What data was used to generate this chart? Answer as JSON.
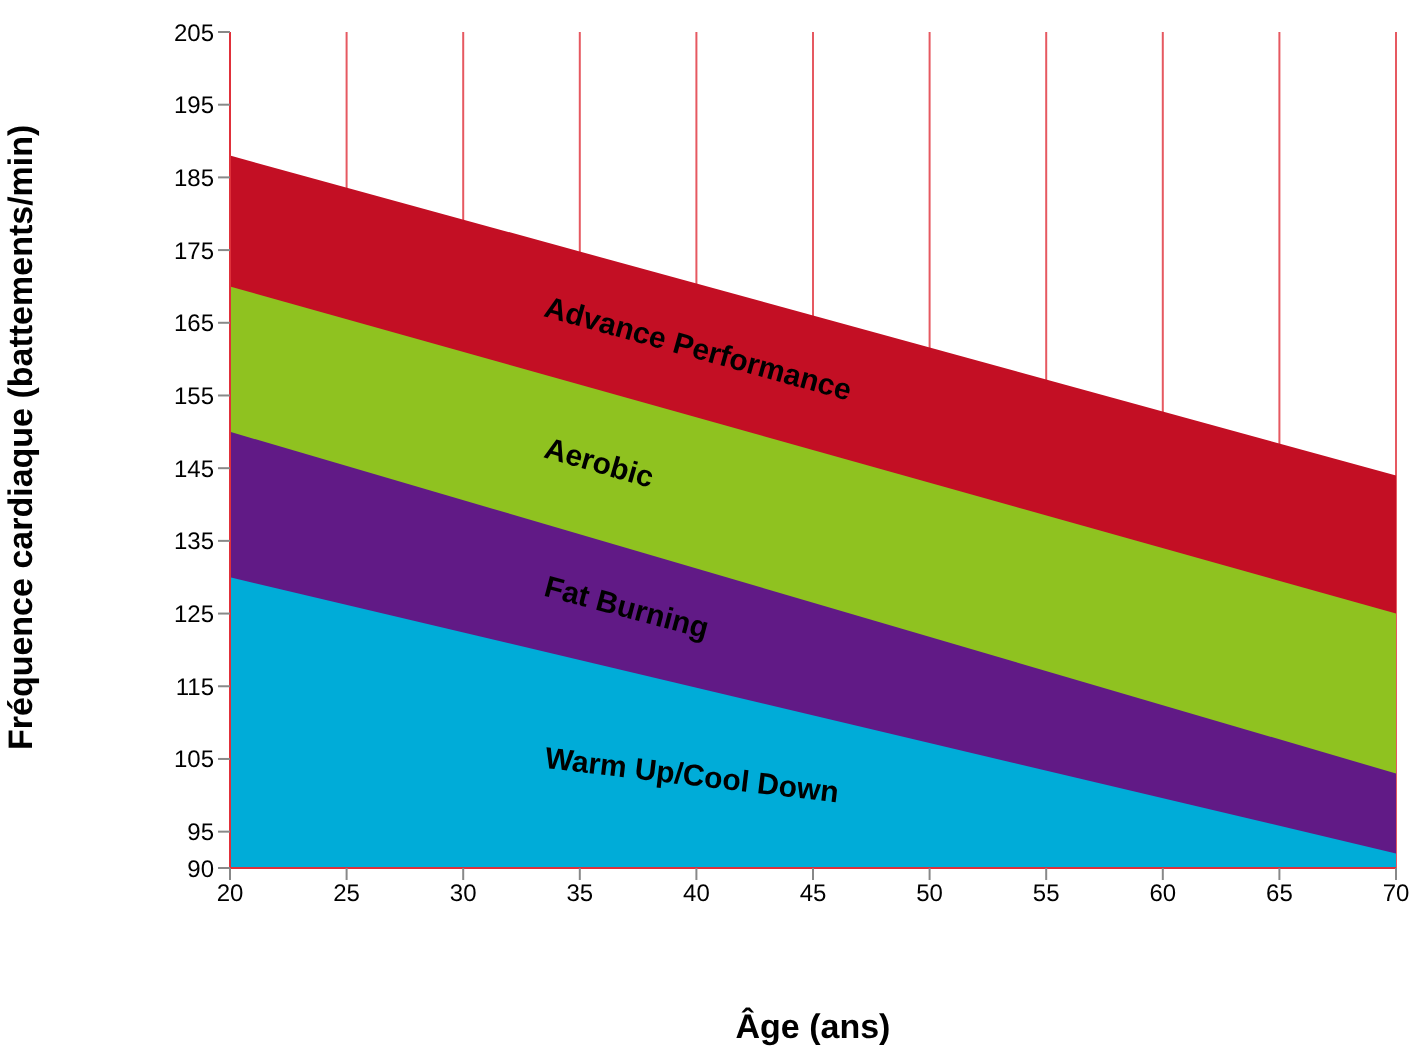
{
  "chart_data": {
    "type": "area",
    "xlabel": "Âge (ans)",
    "ylabel": "Fréquence cardiaque (battements/min)",
    "x": [
      20,
      70
    ],
    "series": [
      {
        "name": "Advance Performance",
        "color": "#c30f24",
        "values": [
          188,
          144
        ]
      },
      {
        "name": "Aerobic",
        "color": "#8fc220",
        "values": [
          170,
          125
        ]
      },
      {
        "name": "Fat Burning",
        "color": "#611a86",
        "values": [
          150,
          103
        ]
      },
      {
        "name": "Warm Up/Cool Down",
        "color": "#00acd8",
        "values": [
          130,
          92
        ]
      }
    ],
    "xlim": [
      20,
      70
    ],
    "xticks": [
      20,
      25,
      30,
      35,
      40,
      45,
      50,
      55,
      60,
      65,
      70
    ],
    "ylim": [
      90,
      205
    ],
    "yticks": [
      90,
      95,
      105,
      115,
      125,
      135,
      145,
      155,
      165,
      175,
      185,
      195,
      205
    ],
    "grid": "x"
  }
}
